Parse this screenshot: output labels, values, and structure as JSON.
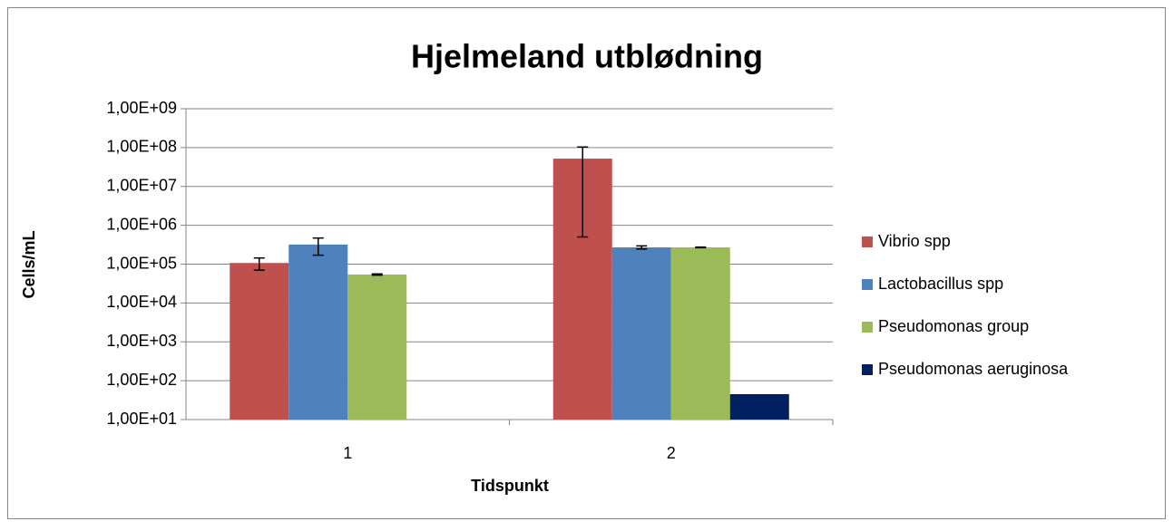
{
  "chart_data": {
    "type": "bar",
    "title": "Hjelmeland utblødning",
    "x_label": "Tidspunkt",
    "y_label": "Cells/mL",
    "categories": [
      "1",
      "2"
    ],
    "series": [
      {
        "name": "Vibrio spp",
        "color": "#c0504d",
        "values": [
          107000,
          52000000
        ],
        "errors": [
          37000,
          51500000
        ]
      },
      {
        "name": "Lactobacillus spp",
        "color": "#4f81bd",
        "values": [
          320000,
          270000
        ],
        "errors": [
          150000,
          25000
        ]
      },
      {
        "name": "Pseudomonas group",
        "color": "#9bbb59",
        "values": [
          54000,
          270000
        ],
        "errors": [
          2000,
          5000
        ]
      },
      {
        "name": "Pseudomonas aeruginosa",
        "color": "#002060",
        "values": [
          null,
          45
        ],
        "errors": [
          null,
          null
        ]
      }
    ],
    "log_scale": true,
    "ylim": [
      10,
      1000000000
    ],
    "yticks": [
      {
        "value": 10,
        "label": "1,00E+01"
      },
      {
        "value": 100,
        "label": "1,00E+02"
      },
      {
        "value": 1000,
        "label": "1,00E+03"
      },
      {
        "value": 10000,
        "label": "1,00E+04"
      },
      {
        "value": 100000,
        "label": "1,00E+05"
      },
      {
        "value": 1000000,
        "label": "1,00E+06"
      },
      {
        "value": 10000000,
        "label": "1,00E+07"
      },
      {
        "value": 100000000,
        "label": "1,00E+08"
      },
      {
        "value": 1000000000,
        "label": "1,00E+09"
      }
    ],
    "grid": true,
    "legend": "right"
  }
}
